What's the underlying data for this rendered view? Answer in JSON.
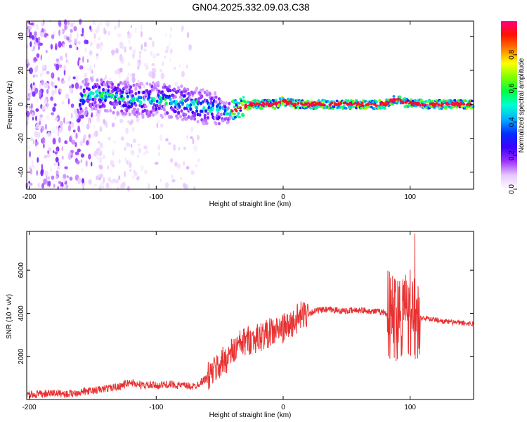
{
  "chart_data": [
    {
      "type": "heatmap",
      "title": "GN04.2025.332.09.03.C38",
      "xlabel": "Height of straight line (km)",
      "ylabel": "Frequency (Hz)",
      "xlim": [
        -202,
        150
      ],
      "ylim": [
        -50,
        49
      ],
      "xticks": [
        "-200",
        "-100",
        "0",
        "100"
      ],
      "xtick_values": [
        -200,
        -100,
        0,
        100
      ],
      "yticks": [
        "40",
        "20",
        "0",
        "-20",
        "-40"
      ],
      "ytick_values": [
        40,
        20,
        0,
        -20,
        -40
      ],
      "colorbar": {
        "label": "Normalized spectral amplitude",
        "range": [
          0,
          1
        ],
        "ticks": [
          "0.0",
          "0.2",
          "0.4",
          "0.6",
          "0.8"
        ],
        "tick_values": [
          0.0,
          0.2,
          0.4,
          0.6,
          0.8
        ],
        "colormap": [
          "#ffffff",
          "#e8c8ff",
          "#9b30ff",
          "#3a00ff",
          "#0030ff",
          "#00b0ff",
          "#00ffd0",
          "#00ff40",
          "#80ff00",
          "#ffff00",
          "#ff8000",
          "#ff1000",
          "#ff0080"
        ]
      },
      "ridge_center_hz": {
        "x": [
          -160,
          -150,
          -140,
          -130,
          -120,
          -110,
          -100,
          -90,
          -80,
          -70,
          -60,
          -50,
          -45,
          -40,
          -35,
          -30,
          -25,
          -20,
          -10,
          -5,
          0,
          5,
          10,
          20,
          40,
          60,
          80,
          85,
          90,
          95,
          100,
          110,
          130,
          150
        ],
        "y": [
          3,
          6,
          5,
          4,
          3,
          2,
          3,
          2,
          1,
          0,
          -2,
          -3,
          -5,
          -4,
          -3,
          -1,
          0,
          0,
          0,
          0,
          2,
          1,
          0,
          0,
          0,
          0,
          0,
          2,
          3,
          1,
          1,
          0,
          0,
          0
        ]
      }
    },
    {
      "type": "line",
      "title": "",
      "xlabel": "Height of straight line (km)",
      "ylabel": "SNR (10 * v/v)",
      "xlim": [
        -202,
        150
      ],
      "ylim": [
        0,
        7800
      ],
      "xticks": [
        "-200",
        "-100",
        "0",
        "100"
      ],
      "xtick_values": [
        -200,
        -100,
        0,
        100
      ],
      "yticks": [
        "2000",
        "4000",
        "6000"
      ],
      "ytick_values": [
        2000,
        4000,
        6000
      ],
      "line_color": "#e83030",
      "series": [
        {
          "x": [
            -202,
            -190,
            -180,
            -170,
            -160,
            -150,
            -140,
            -130,
            -125,
            -120,
            -115,
            -110,
            -100,
            -90,
            -80,
            -70,
            -60,
            -55,
            -50,
            -45,
            -40,
            -35,
            -30,
            -25,
            -20,
            -15,
            -10,
            -5,
            0,
            5,
            10,
            15,
            20,
            25,
            30,
            35,
            40,
            50,
            60,
            70,
            80,
            85,
            90,
            95,
            100,
            103,
            106,
            110,
            120,
            130,
            140,
            150
          ],
          "y": [
            200,
            250,
            300,
            250,
            350,
            400,
            500,
            600,
            700,
            800,
            700,
            650,
            650,
            700,
            650,
            600,
            1000,
            1300,
            1600,
            1900,
            2200,
            2500,
            2700,
            2800,
            2850,
            3000,
            3100,
            3200,
            3300,
            3400,
            3700,
            3900,
            4000,
            4100,
            4150,
            4150,
            4150,
            4100,
            4150,
            4100,
            4050,
            3800,
            4000,
            4200,
            4100,
            3900,
            3700,
            3800,
            3700,
            3600,
            3550,
            3500
          ]
        }
      ]
    }
  ]
}
